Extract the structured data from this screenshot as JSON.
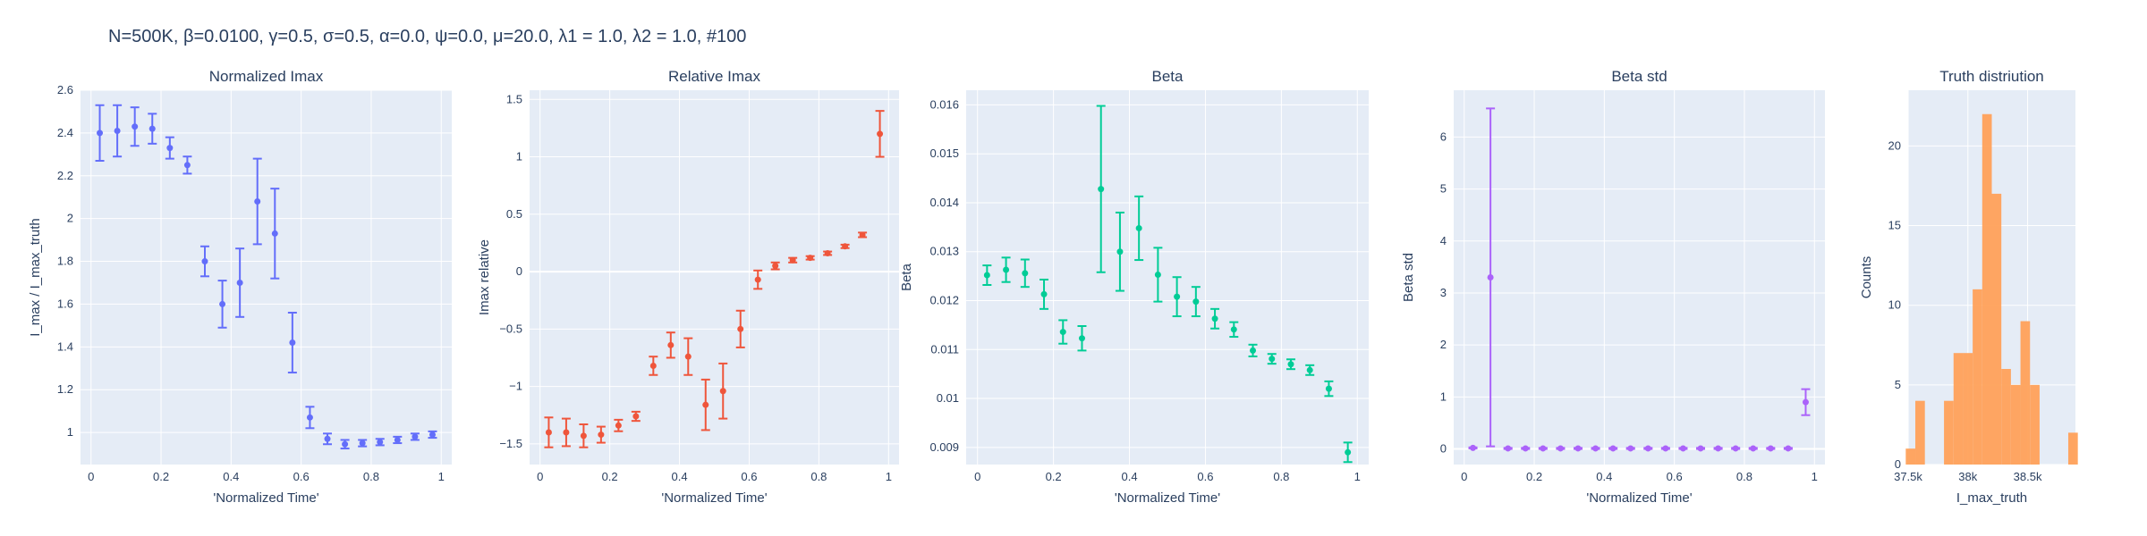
{
  "title": "N=500K, β=0.0100, γ=0.5, σ=0.5,  α=0.0, ψ=0.0, μ=20.0, λ1 = 1.0, λ2 = 1.0, #100",
  "chart_data": [
    {
      "type": "scatter",
      "title": "Normalized Imax",
      "xlabel": "'Normalized Time'",
      "ylabel": "I_max / I_max_truth",
      "xlim": [
        -0.03,
        1.03
      ],
      "ylim": [
        0.85,
        2.6
      ],
      "xticks": [
        0,
        0.2,
        0.4,
        0.6,
        0.8,
        1
      ],
      "xtick_labels": [
        "0",
        "0.2",
        "0.4",
        "0.6",
        "0.8",
        "1"
      ],
      "yticks": [
        1,
        1.2,
        1.4,
        1.6,
        1.8,
        2,
        2.2,
        2.4,
        2.6
      ],
      "ytick_labels": [
        "1",
        "1.2",
        "1.4",
        "1.6",
        "1.8",
        "2",
        "2.2",
        "2.4",
        "2.6"
      ],
      "color": "#636efa",
      "grid": true,
      "x": [
        0.025,
        0.075,
        0.125,
        0.175,
        0.225,
        0.275,
        0.325,
        0.375,
        0.425,
        0.475,
        0.525,
        0.575,
        0.625,
        0.675,
        0.725,
        0.775,
        0.825,
        0.875,
        0.925,
        0.975
      ],
      "y": [
        2.4,
        2.41,
        2.43,
        2.42,
        2.33,
        2.25,
        1.8,
        1.6,
        1.7,
        2.08,
        1.93,
        1.42,
        1.07,
        0.97,
        0.945,
        0.95,
        0.955,
        0.965,
        0.98,
        0.99
      ],
      "err": [
        0.13,
        0.12,
        0.09,
        0.07,
        0.05,
        0.04,
        0.07,
        0.11,
        0.16,
        0.2,
        0.21,
        0.14,
        0.05,
        0.025,
        0.02,
        0.015,
        0.015,
        0.015,
        0.015,
        0.015
      ]
    },
    {
      "type": "scatter",
      "title": "Relative Imax",
      "xlabel": "'Normalized Time'",
      "ylabel": "Imax relative",
      "xlim": [
        -0.03,
        1.03
      ],
      "ylim": [
        -1.68,
        1.58
      ],
      "xticks": [
        0,
        0.2,
        0.4,
        0.6,
        0.8,
        1
      ],
      "xtick_labels": [
        "0",
        "0.2",
        "0.4",
        "0.6",
        "0.8",
        "1"
      ],
      "yticks": [
        -1.5,
        -1,
        -0.5,
        0,
        0.5,
        1,
        1.5
      ],
      "ytick_labels": [
        "−1.5",
        "−1",
        "−0.5",
        "0",
        "0.5",
        "1",
        "1.5"
      ],
      "color": "#ef553b",
      "grid": true,
      "x": [
        0.025,
        0.075,
        0.125,
        0.175,
        0.225,
        0.275,
        0.325,
        0.375,
        0.425,
        0.475,
        0.525,
        0.575,
        0.625,
        0.675,
        0.725,
        0.775,
        0.825,
        0.875,
        0.925,
        0.975
      ],
      "y": [
        -1.4,
        -1.4,
        -1.43,
        -1.42,
        -1.34,
        -1.26,
        -0.82,
        -0.64,
        -0.74,
        -1.16,
        -1.04,
        -0.5,
        -0.07,
        0.05,
        0.1,
        0.12,
        0.16,
        0.22,
        0.32,
        1.2
      ],
      "err": [
        0.13,
        0.12,
        0.1,
        0.07,
        0.05,
        0.04,
        0.08,
        0.11,
        0.16,
        0.22,
        0.24,
        0.16,
        0.08,
        0.03,
        0.02,
        0.015,
        0.015,
        0.015,
        0.02,
        0.2
      ]
    },
    {
      "type": "scatter",
      "title": "Beta",
      "xlabel": "'Normalized Time'",
      "ylabel": "Beta",
      "xlim": [
        -0.03,
        1.03
      ],
      "ylim": [
        0.00865,
        0.0163
      ],
      "xticks": [
        0,
        0.2,
        0.4,
        0.6,
        0.8,
        1
      ],
      "xtick_labels": [
        "0",
        "0.2",
        "0.4",
        "0.6",
        "0.8",
        "1"
      ],
      "yticks": [
        0.009,
        0.01,
        0.011,
        0.012,
        0.013,
        0.014,
        0.015,
        0.016
      ],
      "ytick_labels": [
        "0.009",
        "0.01",
        "0.011",
        "0.012",
        "0.013",
        "0.014",
        "0.015",
        "0.016"
      ],
      "color": "#00cc96",
      "grid": true,
      "x": [
        0.025,
        0.075,
        0.125,
        0.175,
        0.225,
        0.275,
        0.325,
        0.375,
        0.425,
        0.475,
        0.525,
        0.575,
        0.625,
        0.675,
        0.725,
        0.775,
        0.825,
        0.875,
        0.925,
        0.975
      ],
      "y": [
        0.01252,
        0.01263,
        0.01256,
        0.01213,
        0.01136,
        0.01123,
        0.01428,
        0.013,
        0.01348,
        0.01253,
        0.01208,
        0.01198,
        0.01163,
        0.01141,
        0.01098,
        0.01081,
        0.0107,
        0.01058,
        0.0102,
        0.0089
      ],
      "err": [
        0.0002,
        0.00025,
        0.00028,
        0.0003,
        0.00024,
        0.00025,
        0.0017,
        0.0008,
        0.00065,
        0.00055,
        0.0004,
        0.0003,
        0.0002,
        0.00015,
        0.00012,
        0.0001,
        0.0001,
        0.0001,
        0.00015,
        0.0002
      ]
    },
    {
      "type": "scatter",
      "title": "Beta std",
      "xlabel": "'Normalized Time'",
      "ylabel": "Beta std",
      "xlim": [
        -0.03,
        1.03
      ],
      "ylim": [
        -0.3,
        6.9
      ],
      "xticks": [
        0,
        0.2,
        0.4,
        0.6,
        0.8,
        1
      ],
      "xtick_labels": [
        "0",
        "0.2",
        "0.4",
        "0.6",
        "0.8",
        "1"
      ],
      "yticks": [
        0,
        1,
        2,
        3,
        4,
        5,
        6
      ],
      "ytick_labels": [
        "0",
        "1",
        "2",
        "3",
        "4",
        "5",
        "6"
      ],
      "color": "#ab63fa",
      "grid": true,
      "x": [
        0.025,
        0.075,
        0.125,
        0.175,
        0.225,
        0.275,
        0.325,
        0.375,
        0.425,
        0.475,
        0.525,
        0.575,
        0.625,
        0.675,
        0.725,
        0.775,
        0.825,
        0.875,
        0.925,
        0.975
      ],
      "y": [
        0.02,
        3.3,
        0.01,
        0.01,
        0.01,
        0.01,
        0.01,
        0.01,
        0.01,
        0.01,
        0.01,
        0.01,
        0.01,
        0.01,
        0.01,
        0.01,
        0.01,
        0.01,
        0.01,
        0.9
      ],
      "err": [
        0.01,
        3.25,
        0.01,
        0.01,
        0.01,
        0.01,
        0.01,
        0.01,
        0.01,
        0.01,
        0.01,
        0.01,
        0.01,
        0.01,
        0.01,
        0.01,
        0.01,
        0.01,
        0.01,
        0.25
      ]
    },
    {
      "type": "histogram",
      "title": "Truth distriution",
      "xlabel": "I_max_truth",
      "ylabel": "Counts",
      "xlim": [
        37500,
        38900
      ],
      "ylim": [
        0,
        23.5
      ],
      "xticks": [
        37500,
        38000,
        38500
      ],
      "xtick_labels": [
        "37.5k",
        "38k",
        "38.5k"
      ],
      "yticks": [
        0,
        5,
        10,
        15,
        20
      ],
      "ytick_labels": [
        "0",
        "5",
        "10",
        "15",
        "20"
      ],
      "color": "#ffa15a",
      "grid": true,
      "bin_width": 80,
      "bin_starts": [
        37480,
        37560,
        37640,
        37720,
        37800,
        37880,
        37960,
        38040,
        38120,
        38200,
        38280,
        38360,
        38440,
        38520,
        38600,
        38680,
        38760,
        38840
      ],
      "counts": [
        1,
        4,
        0,
        0,
        4,
        7,
        7,
        11,
        22,
        17,
        6,
        5,
        9,
        5,
        0,
        0,
        0,
        2
      ]
    }
  ]
}
